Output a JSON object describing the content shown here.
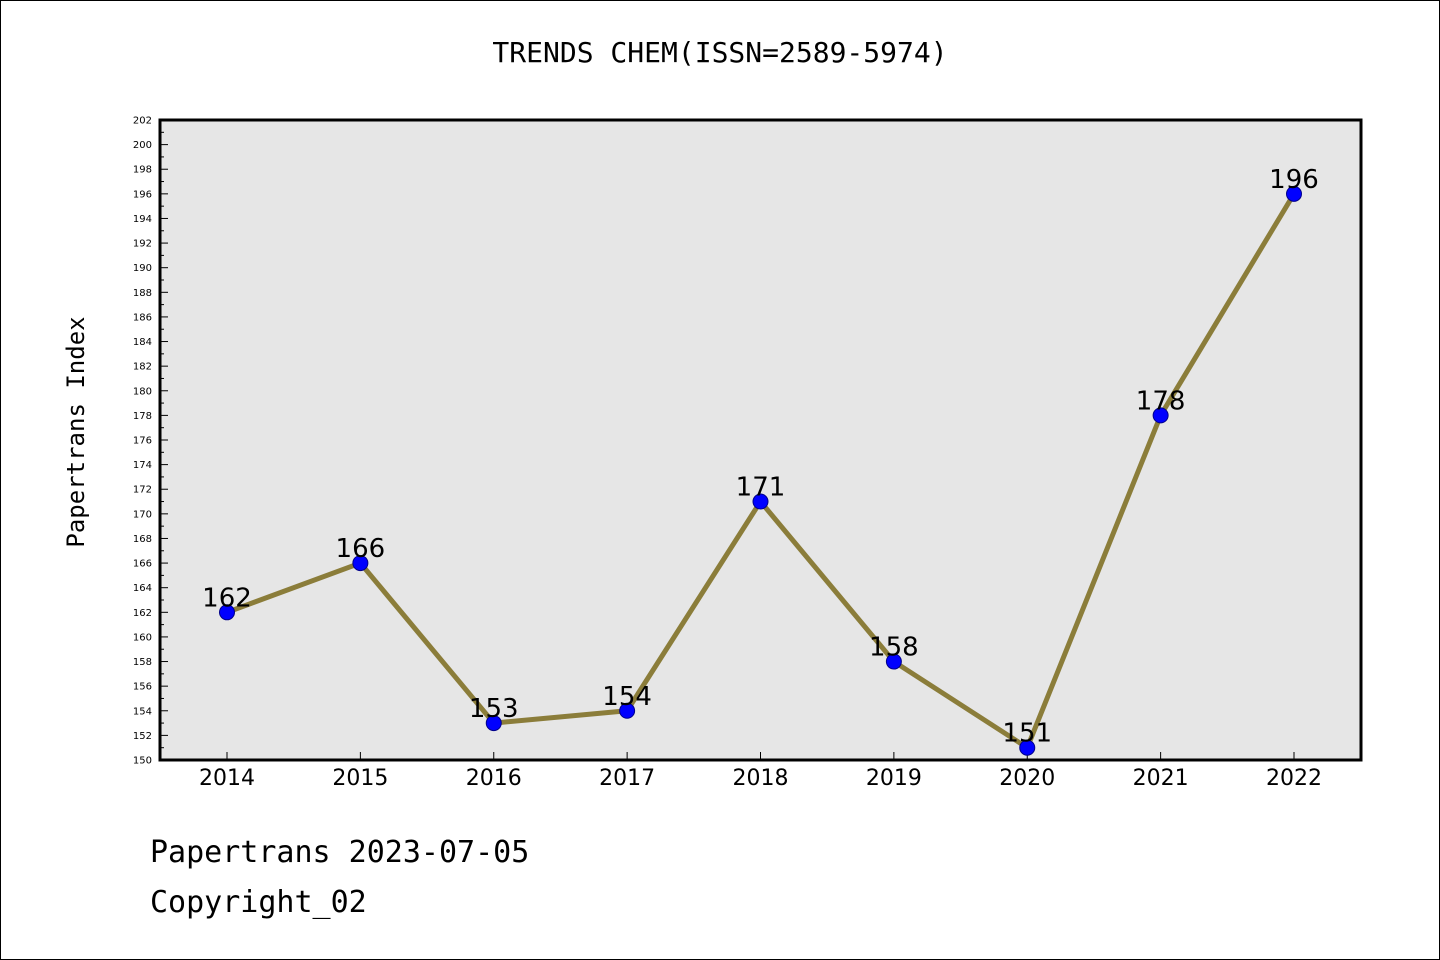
{
  "title": "TRENDS CHEM(ISSN=2589-5974)",
  "footer": {
    "line1": "Papertrans 2023-07-05",
    "line2": "Copyright_02"
  },
  "colors": {
    "plot_bg": "#e6e6e6",
    "line": "#8b7d3a",
    "marker": "#0000ff",
    "marker_edge": "#00008b"
  },
  "chart_data": {
    "type": "line",
    "title": "TRENDS CHEM(ISSN=2589-5974)",
    "xlabel": "",
    "ylabel": "Papertrans Index",
    "categories": [
      "2014",
      "2015",
      "2016",
      "2017",
      "2018",
      "2019",
      "2020",
      "2021",
      "2022"
    ],
    "series": [
      {
        "values": [
          162,
          166,
          153,
          154,
          171,
          158,
          151,
          178,
          196
        ],
        "data_labels": [
          "162",
          "166",
          "153",
          "154",
          "171",
          "158",
          "151",
          "178",
          "196"
        ]
      }
    ],
    "ylim": [
      150,
      202
    ],
    "yticks": [
      150,
      152,
      154,
      156,
      158,
      160,
      162,
      164,
      166,
      168,
      170,
      172,
      174,
      176,
      178,
      180,
      182,
      184,
      186,
      188,
      190,
      192,
      194,
      196,
      198,
      200,
      202
    ],
    "grid": false,
    "legend": "none"
  }
}
